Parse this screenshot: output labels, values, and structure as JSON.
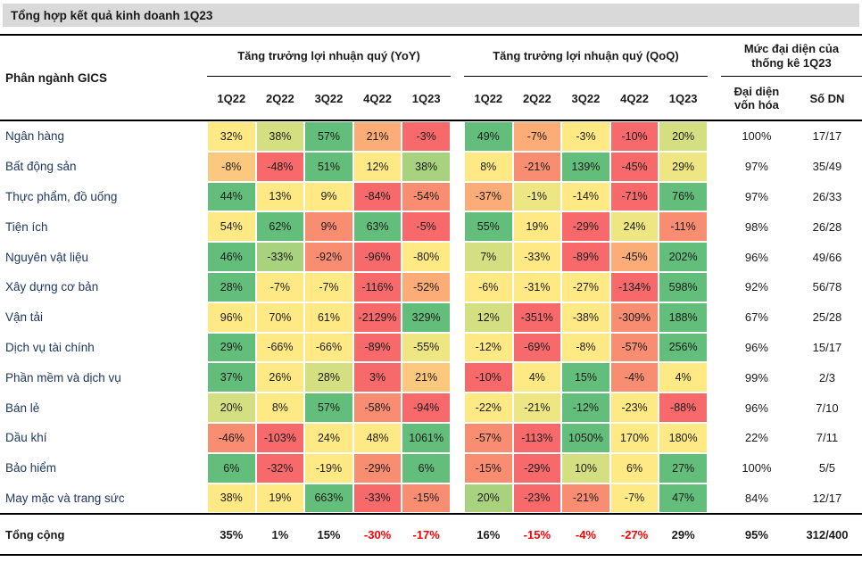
{
  "title": "Tổng hợp kết quả kinh doanh 1Q23",
  "chart_data": {
    "type": "heatmap-table",
    "title": "Tổng hợp kết quả kinh doanh 1Q23",
    "row_header": "Phân ngành GICS",
    "groups": {
      "yoy": "Tăng trưởng lợi nhuận quý (YoY)",
      "qoq": "Tăng trưởng lợi nhuận quý (QoQ)",
      "stats_line1": "Mức đại diện của",
      "stats_line2": "thống kê 1Q23"
    },
    "quarters": [
      "1Q22",
      "2Q22",
      "3Q22",
      "4Q22",
      "1Q23"
    ],
    "stats_headers": {
      "cap_line1": "Đại diện",
      "cap_line2": "vốn hóa",
      "firms": "Số DN"
    },
    "palette": {
      "R": "#F8696B",
      "SO": "#F98D72",
      "O": "#FBAC77",
      "OY": "#FCC87D",
      "Y": "#FFE984",
      "PY": "#EEE683",
      "YG": "#D3DF81",
      "LG": "#A9D27F",
      "G": "#63BE7B"
    },
    "total_text_colors": {
      "k": "#1a1a1a",
      "r": "#FF0000"
    },
    "rows": [
      {
        "name": "Ngân hàng",
        "yoy": [
          [
            "32%",
            "Y"
          ],
          [
            "38%",
            "YG"
          ],
          [
            "57%",
            "G"
          ],
          [
            "21%",
            "O"
          ],
          [
            "-3%",
            "R"
          ]
        ],
        "qoq": [
          [
            "49%",
            "G"
          ],
          [
            "-7%",
            "O"
          ],
          [
            "-3%",
            "Y"
          ],
          [
            "-10%",
            "R"
          ],
          [
            "20%",
            "YG"
          ]
        ],
        "cap": "100%",
        "firms": "17/17"
      },
      {
        "name": "Bất động sản",
        "yoy": [
          [
            "-8%",
            "OY"
          ],
          [
            "-48%",
            "R"
          ],
          [
            "51%",
            "G"
          ],
          [
            "12%",
            "Y"
          ],
          [
            "38%",
            "LG"
          ]
        ],
        "qoq": [
          [
            "8%",
            "Y"
          ],
          [
            "-21%",
            "SO"
          ],
          [
            "139%",
            "G"
          ],
          [
            "-45%",
            "R"
          ],
          [
            "29%",
            "PY"
          ]
        ],
        "cap": "97%",
        "firms": "35/49"
      },
      {
        "name": "Thực phẩm, đồ uống",
        "yoy": [
          [
            "44%",
            "G"
          ],
          [
            "13%",
            "Y"
          ],
          [
            "9%",
            "Y"
          ],
          [
            "-84%",
            "R"
          ],
          [
            "-54%",
            "SO"
          ]
        ],
        "qoq": [
          [
            "-37%",
            "O"
          ],
          [
            "-1%",
            "PY"
          ],
          [
            "-14%",
            "Y"
          ],
          [
            "-71%",
            "R"
          ],
          [
            "76%",
            "G"
          ]
        ],
        "cap": "97%",
        "firms": "26/33"
      },
      {
        "name": "Tiện ích",
        "yoy": [
          [
            "54%",
            "Y"
          ],
          [
            "62%",
            "G"
          ],
          [
            "9%",
            "SO"
          ],
          [
            "63%",
            "G"
          ],
          [
            "-5%",
            "R"
          ]
        ],
        "qoq": [
          [
            "55%",
            "G"
          ],
          [
            "19%",
            "Y"
          ],
          [
            "-29%",
            "R"
          ],
          [
            "24%",
            "PY"
          ],
          [
            "-11%",
            "SO"
          ]
        ],
        "cap": "98%",
        "firms": "26/28"
      },
      {
        "name": "Nguyên vật liệu",
        "yoy": [
          [
            "46%",
            "G"
          ],
          [
            "-33%",
            "LG"
          ],
          [
            "-92%",
            "SO"
          ],
          [
            "-96%",
            "R"
          ],
          [
            "-80%",
            "Y"
          ]
        ],
        "qoq": [
          [
            "7%",
            "YG"
          ],
          [
            "-33%",
            "Y"
          ],
          [
            "-89%",
            "R"
          ],
          [
            "-45%",
            "O"
          ],
          [
            "202%",
            "G"
          ]
        ],
        "cap": "96%",
        "firms": "49/66"
      },
      {
        "name": "Xây dựng cơ bản",
        "yoy": [
          [
            "28%",
            "G"
          ],
          [
            "-7%",
            "Y"
          ],
          [
            "-7%",
            "Y"
          ],
          [
            "-116%",
            "R"
          ],
          [
            "-52%",
            "O"
          ]
        ],
        "qoq": [
          [
            "-6%",
            "Y"
          ],
          [
            "-31%",
            "Y"
          ],
          [
            "-27%",
            "Y"
          ],
          [
            "-134%",
            "R"
          ],
          [
            "598%",
            "G"
          ]
        ],
        "cap": "92%",
        "firms": "56/78"
      },
      {
        "name": "Vận tải",
        "yoy": [
          [
            "96%",
            "Y"
          ],
          [
            "70%",
            "Y"
          ],
          [
            "61%",
            "Y"
          ],
          [
            "-2129%",
            "R"
          ],
          [
            "329%",
            "G"
          ]
        ],
        "qoq": [
          [
            "12%",
            "YG"
          ],
          [
            "-351%",
            "R"
          ],
          [
            "-38%",
            "Y"
          ],
          [
            "-309%",
            "SO"
          ],
          [
            "188%",
            "G"
          ]
        ],
        "cap": "67%",
        "firms": "25/28"
      },
      {
        "name": "Dịch vụ tài chính",
        "yoy": [
          [
            "29%",
            "G"
          ],
          [
            "-66%",
            "Y"
          ],
          [
            "-66%",
            "Y"
          ],
          [
            "-89%",
            "R"
          ],
          [
            "-55%",
            "PY"
          ]
        ],
        "qoq": [
          [
            "-12%",
            "Y"
          ],
          [
            "-69%",
            "R"
          ],
          [
            "-8%",
            "Y"
          ],
          [
            "-57%",
            "SO"
          ],
          [
            "256%",
            "G"
          ]
        ],
        "cap": "96%",
        "firms": "15/17"
      },
      {
        "name": "Phần mềm và dịch vụ",
        "yoy": [
          [
            "37%",
            "G"
          ],
          [
            "26%",
            "Y"
          ],
          [
            "28%",
            "YG"
          ],
          [
            "3%",
            "R"
          ],
          [
            "21%",
            "OY"
          ]
        ],
        "qoq": [
          [
            "-10%",
            "R"
          ],
          [
            "4%",
            "Y"
          ],
          [
            "15%",
            "G"
          ],
          [
            "-4%",
            "SO"
          ],
          [
            "4%",
            "Y"
          ]
        ],
        "cap": "99%",
        "firms": "2/3"
      },
      {
        "name": "Bán lẻ",
        "yoy": [
          [
            "20%",
            "YG"
          ],
          [
            "8%",
            "Y"
          ],
          [
            "57%",
            "G"
          ],
          [
            "-58%",
            "SO"
          ],
          [
            "-94%",
            "R"
          ]
        ],
        "qoq": [
          [
            "-22%",
            "Y"
          ],
          [
            "-21%",
            "PY"
          ],
          [
            "-12%",
            "G"
          ],
          [
            "-23%",
            "Y"
          ],
          [
            "-88%",
            "R"
          ]
        ],
        "cap": "96%",
        "firms": "7/10"
      },
      {
        "name": "Dầu khí",
        "yoy": [
          [
            "-46%",
            "SO"
          ],
          [
            "-103%",
            "R"
          ],
          [
            "24%",
            "Y"
          ],
          [
            "48%",
            "Y"
          ],
          [
            "1061%",
            "G"
          ]
        ],
        "qoq": [
          [
            "-57%",
            "SO"
          ],
          [
            "-113%",
            "R"
          ],
          [
            "1050%",
            "G"
          ],
          [
            "170%",
            "Y"
          ],
          [
            "180%",
            "Y"
          ]
        ],
        "cap": "22%",
        "firms": "7/11"
      },
      {
        "name": "Bảo hiểm",
        "yoy": [
          [
            "6%",
            "G"
          ],
          [
            "-32%",
            "R"
          ],
          [
            "-19%",
            "Y"
          ],
          [
            "-29%",
            "SO"
          ],
          [
            "6%",
            "G"
          ]
        ],
        "qoq": [
          [
            "-15%",
            "SO"
          ],
          [
            "-29%",
            "R"
          ],
          [
            "10%",
            "YG"
          ],
          [
            "6%",
            "Y"
          ],
          [
            "27%",
            "G"
          ]
        ],
        "cap": "100%",
        "firms": "5/5"
      },
      {
        "name": "May mặc và trang sức",
        "yoy": [
          [
            "38%",
            "Y"
          ],
          [
            "19%",
            "Y"
          ],
          [
            "663%",
            "G"
          ],
          [
            "-33%",
            "R"
          ],
          [
            "-15%",
            "SO"
          ]
        ],
        "qoq": [
          [
            "20%",
            "LG"
          ],
          [
            "-23%",
            "R"
          ],
          [
            "-21%",
            "SO"
          ],
          [
            "-7%",
            "Y"
          ],
          [
            "47%",
            "G"
          ]
        ],
        "cap": "84%",
        "firms": "12/17"
      }
    ],
    "total": {
      "name": "Tổng cộng",
      "yoy": [
        [
          "35%",
          "k"
        ],
        [
          "1%",
          "k"
        ],
        [
          "15%",
          "k"
        ],
        [
          "-30%",
          "r"
        ],
        [
          "-17%",
          "r"
        ]
      ],
      "qoq": [
        [
          "16%",
          "k"
        ],
        [
          "-15%",
          "r"
        ],
        [
          "-4%",
          "r"
        ],
        [
          "-27%",
          "r"
        ],
        [
          "29%",
          "k"
        ]
      ],
      "cap": "95%",
      "firms": "312/400"
    }
  }
}
